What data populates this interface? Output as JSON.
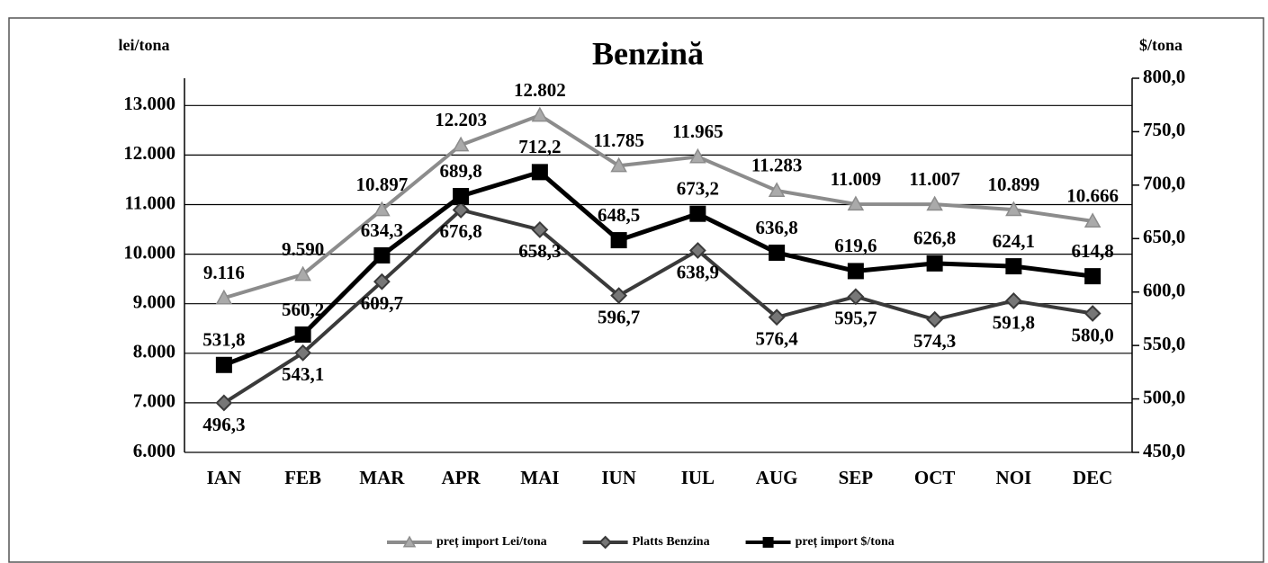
{
  "chart_data": {
    "type": "line",
    "title": "Benzină",
    "y_label": "lei/tona",
    "y2_label": "$/tona",
    "categories": [
      "IAN",
      "FEB",
      "MAR",
      "APR",
      "MAI",
      "IUN",
      "IUL",
      "AUG",
      "SEP",
      "OCT",
      "NOI",
      "DEC"
    ],
    "series": [
      {
        "name": "preț import Lei/tona",
        "color": "#8c8c8c",
        "marker": "triangle",
        "axis": "y",
        "label_pos": "above",
        "values": [
          9116,
          9590,
          10897,
          12203,
          12802,
          11785,
          11965,
          11283,
          11009,
          11007,
          10899,
          10666
        ],
        "value_labels": [
          "9.116",
          "9.590",
          "10.897",
          "12.203",
          "12.802",
          "11.785",
          "11.965",
          "11.283",
          "11.009",
          "11.007",
          "10.899",
          "10.666"
        ]
      },
      {
        "name": "Platts Benzina",
        "color": "#3a3a3a",
        "marker": "diamond",
        "axis": "y2",
        "label_pos": "below",
        "values": [
          496.3,
          543.1,
          609.7,
          676.8,
          658.3,
          596.7,
          638.9,
          576.4,
          595.7,
          574.3,
          591.8,
          580.0
        ],
        "value_labels": [
          "496,3",
          "543,1",
          "609,7",
          "676,8",
          "658,3",
          "596,7",
          "638,9",
          "576,4",
          "595,7",
          "574,3",
          "591,8",
          "580,0"
        ]
      },
      {
        "name": "preț import $/tona",
        "color": "#000000",
        "marker": "square",
        "axis": "y2",
        "label_pos": "above",
        "values": [
          531.8,
          560.2,
          634.3,
          689.8,
          712.2,
          648.5,
          673.2,
          636.8,
          619.6,
          626.8,
          624.1,
          614.8
        ],
        "value_labels": [
          "531,8",
          "560,2",
          "634,3",
          "689,8",
          "712,2",
          "648,5",
          "673,2",
          "636,8",
          "619,6",
          "626,8",
          "624,1",
          "614,8"
        ]
      }
    ],
    "ylim": [
      6000,
      13550
    ],
    "yticks": [
      {
        "value": 6000,
        "label": "6.000"
      },
      {
        "value": 7000,
        "label": "7.000"
      },
      {
        "value": 8000,
        "label": "8.000"
      },
      {
        "value": 9000,
        "label": "9.000"
      },
      {
        "value": 10000,
        "label": "10.000"
      },
      {
        "value": 11000,
        "label": "11.000"
      },
      {
        "value": 12000,
        "label": "12.000"
      },
      {
        "value": 13000,
        "label": "13.000"
      }
    ],
    "y2lim": [
      450,
      800
    ],
    "y2ticks": [
      {
        "value": 450,
        "label": "450,0"
      },
      {
        "value": 500,
        "label": "500,0"
      },
      {
        "value": 550,
        "label": "550,0"
      },
      {
        "value": 600,
        "label": "600,0"
      },
      {
        "value": 650,
        "label": "650,0"
      },
      {
        "value": 700,
        "label": "700,0"
      },
      {
        "value": 750,
        "label": "750,0"
      },
      {
        "value": 800,
        "label": "800,0"
      }
    ],
    "grid": true,
    "legend": "bottom"
  }
}
